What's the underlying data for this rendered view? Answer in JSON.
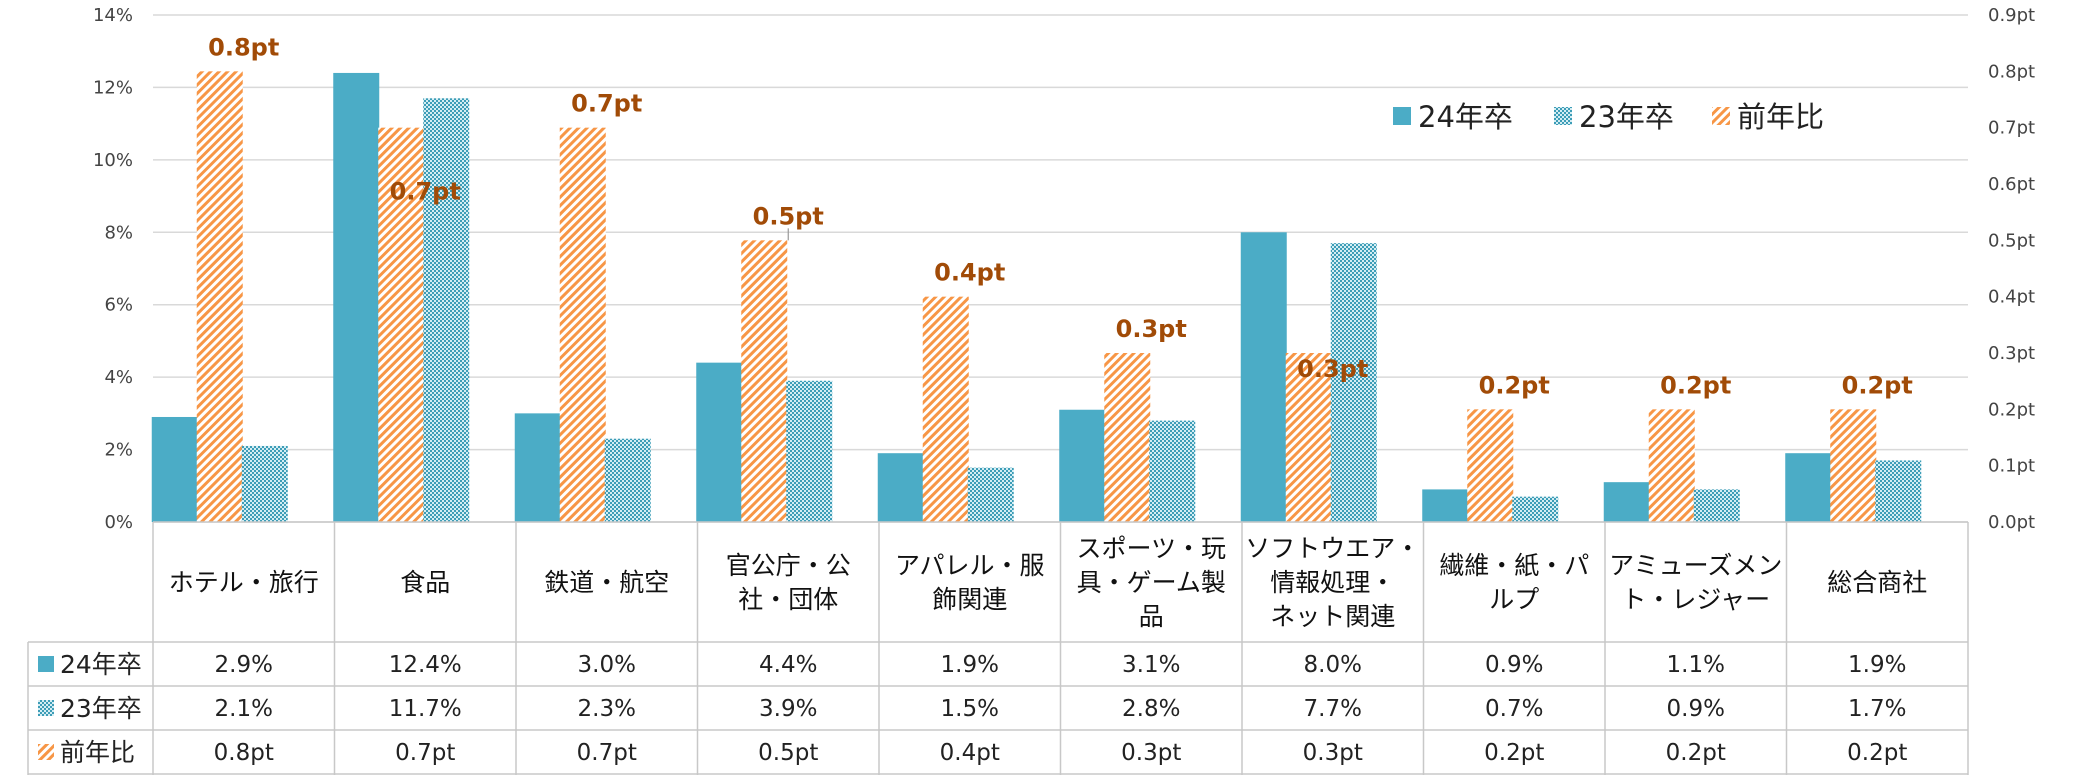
{
  "chart_data": {
    "type": "bar",
    "categories": [
      [
        "ホテル・旅行"
      ],
      [
        "食品"
      ],
      [
        "鉄道・航空"
      ],
      [
        "官公庁・公",
        "社・団体"
      ],
      [
        "アパレル・服",
        "飾関連"
      ],
      [
        "スポーツ・玩",
        "具・ゲーム製",
        "品"
      ],
      [
        "ソフトウエア・",
        "情報処理・",
        "ネット関連"
      ],
      [
        "繊維・紙・パ",
        "ルプ"
      ],
      [
        "アミューズメン",
        "ト・レジャー"
      ],
      [
        "総合商社"
      ]
    ],
    "series": [
      {
        "name": "24年卒",
        "axis": "left",
        "values": [
          2.9,
          12.4,
          3.0,
          4.4,
          1.9,
          3.1,
          8.0,
          0.9,
          1.1,
          1.9
        ],
        "color": "#4bacc6",
        "pattern": "solid"
      },
      {
        "name": "前年比",
        "axis": "right",
        "values": [
          0.8,
          0.7,
          0.7,
          0.5,
          0.4,
          0.3,
          0.3,
          0.2,
          0.2,
          0.2
        ],
        "color": "#f79646",
        "pattern": "diagonal"
      },
      {
        "name": "23年卒",
        "axis": "left",
        "values": [
          2.1,
          11.7,
          2.3,
          3.9,
          1.5,
          2.8,
          7.7,
          0.7,
          0.9,
          1.7
        ],
        "color": "#4bacc6",
        "pattern": "dots"
      }
    ],
    "data_labels": [
      "0.8pt",
      "0.7pt",
      "0.7pt",
      "0.5pt",
      "0.4pt",
      "0.3pt",
      "0.3pt",
      "0.2pt",
      "0.2pt",
      "0.2pt"
    ],
    "left_axis": {
      "min": 0,
      "max": 14,
      "step": 2,
      "tick_labels": [
        "0%",
        "2%",
        "4%",
        "6%",
        "8%",
        "10%",
        "12%",
        "14%"
      ]
    },
    "right_axis": {
      "min": 0,
      "max": 0.9,
      "step": 0.1,
      "tick_labels": [
        "0.0pt",
        "0.1pt",
        "0.2pt",
        "0.3pt",
        "0.4pt",
        "0.5pt",
        "0.6pt",
        "0.7pt",
        "0.8pt",
        "0.9pt"
      ]
    },
    "legend": {
      "placement": "top-right",
      "entries": [
        "24年卒",
        "23年卒",
        "前年比"
      ]
    },
    "table": {
      "row_labels": [
        "24年卒",
        "23年卒",
        "前年比"
      ],
      "rows": [
        [
          "2.9%",
          "12.4%",
          "3.0%",
          "4.4%",
          "1.9%",
          "3.1%",
          "8.0%",
          "0.9%",
          "1.1%",
          "1.9%"
        ],
        [
          "2.1%",
          "11.7%",
          "2.3%",
          "3.9%",
          "1.5%",
          "2.8%",
          "7.7%",
          "0.7%",
          "0.9%",
          "1.7%"
        ],
        [
          "0.8pt",
          "0.7pt",
          "0.7pt",
          "0.5pt",
          "0.4pt",
          "0.3pt",
          "0.3pt",
          "0.2pt",
          "0.2pt",
          "0.2pt"
        ]
      ]
    },
    "grid": true
  }
}
